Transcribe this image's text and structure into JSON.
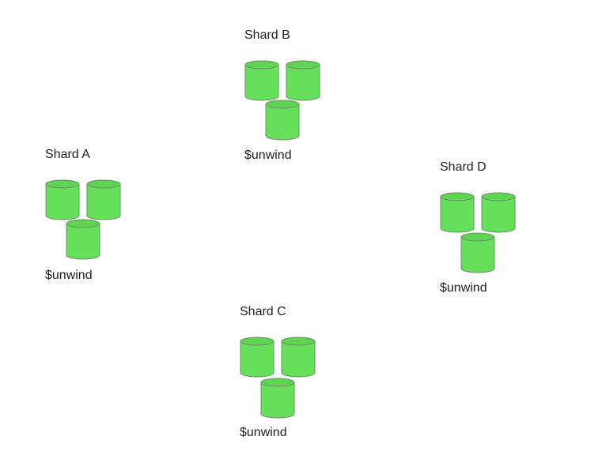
{
  "colors": {
    "cylinder_fill": "#66e05a",
    "cylinder_top": "#5fd352",
    "cylinder_stroke": "#6a8f66",
    "text": "#222222"
  },
  "shards": [
    {
      "title": "Shard A",
      "stage": "$unwind",
      "icon": "database-cylinder-icon"
    },
    {
      "title": "Shard B",
      "stage": "$unwind",
      "icon": "database-cylinder-icon"
    },
    {
      "title": "Shard C",
      "stage": "$unwind",
      "icon": "database-cylinder-icon"
    },
    {
      "title": "Shard D",
      "stage": "$unwind",
      "icon": "database-cylinder-icon"
    }
  ]
}
